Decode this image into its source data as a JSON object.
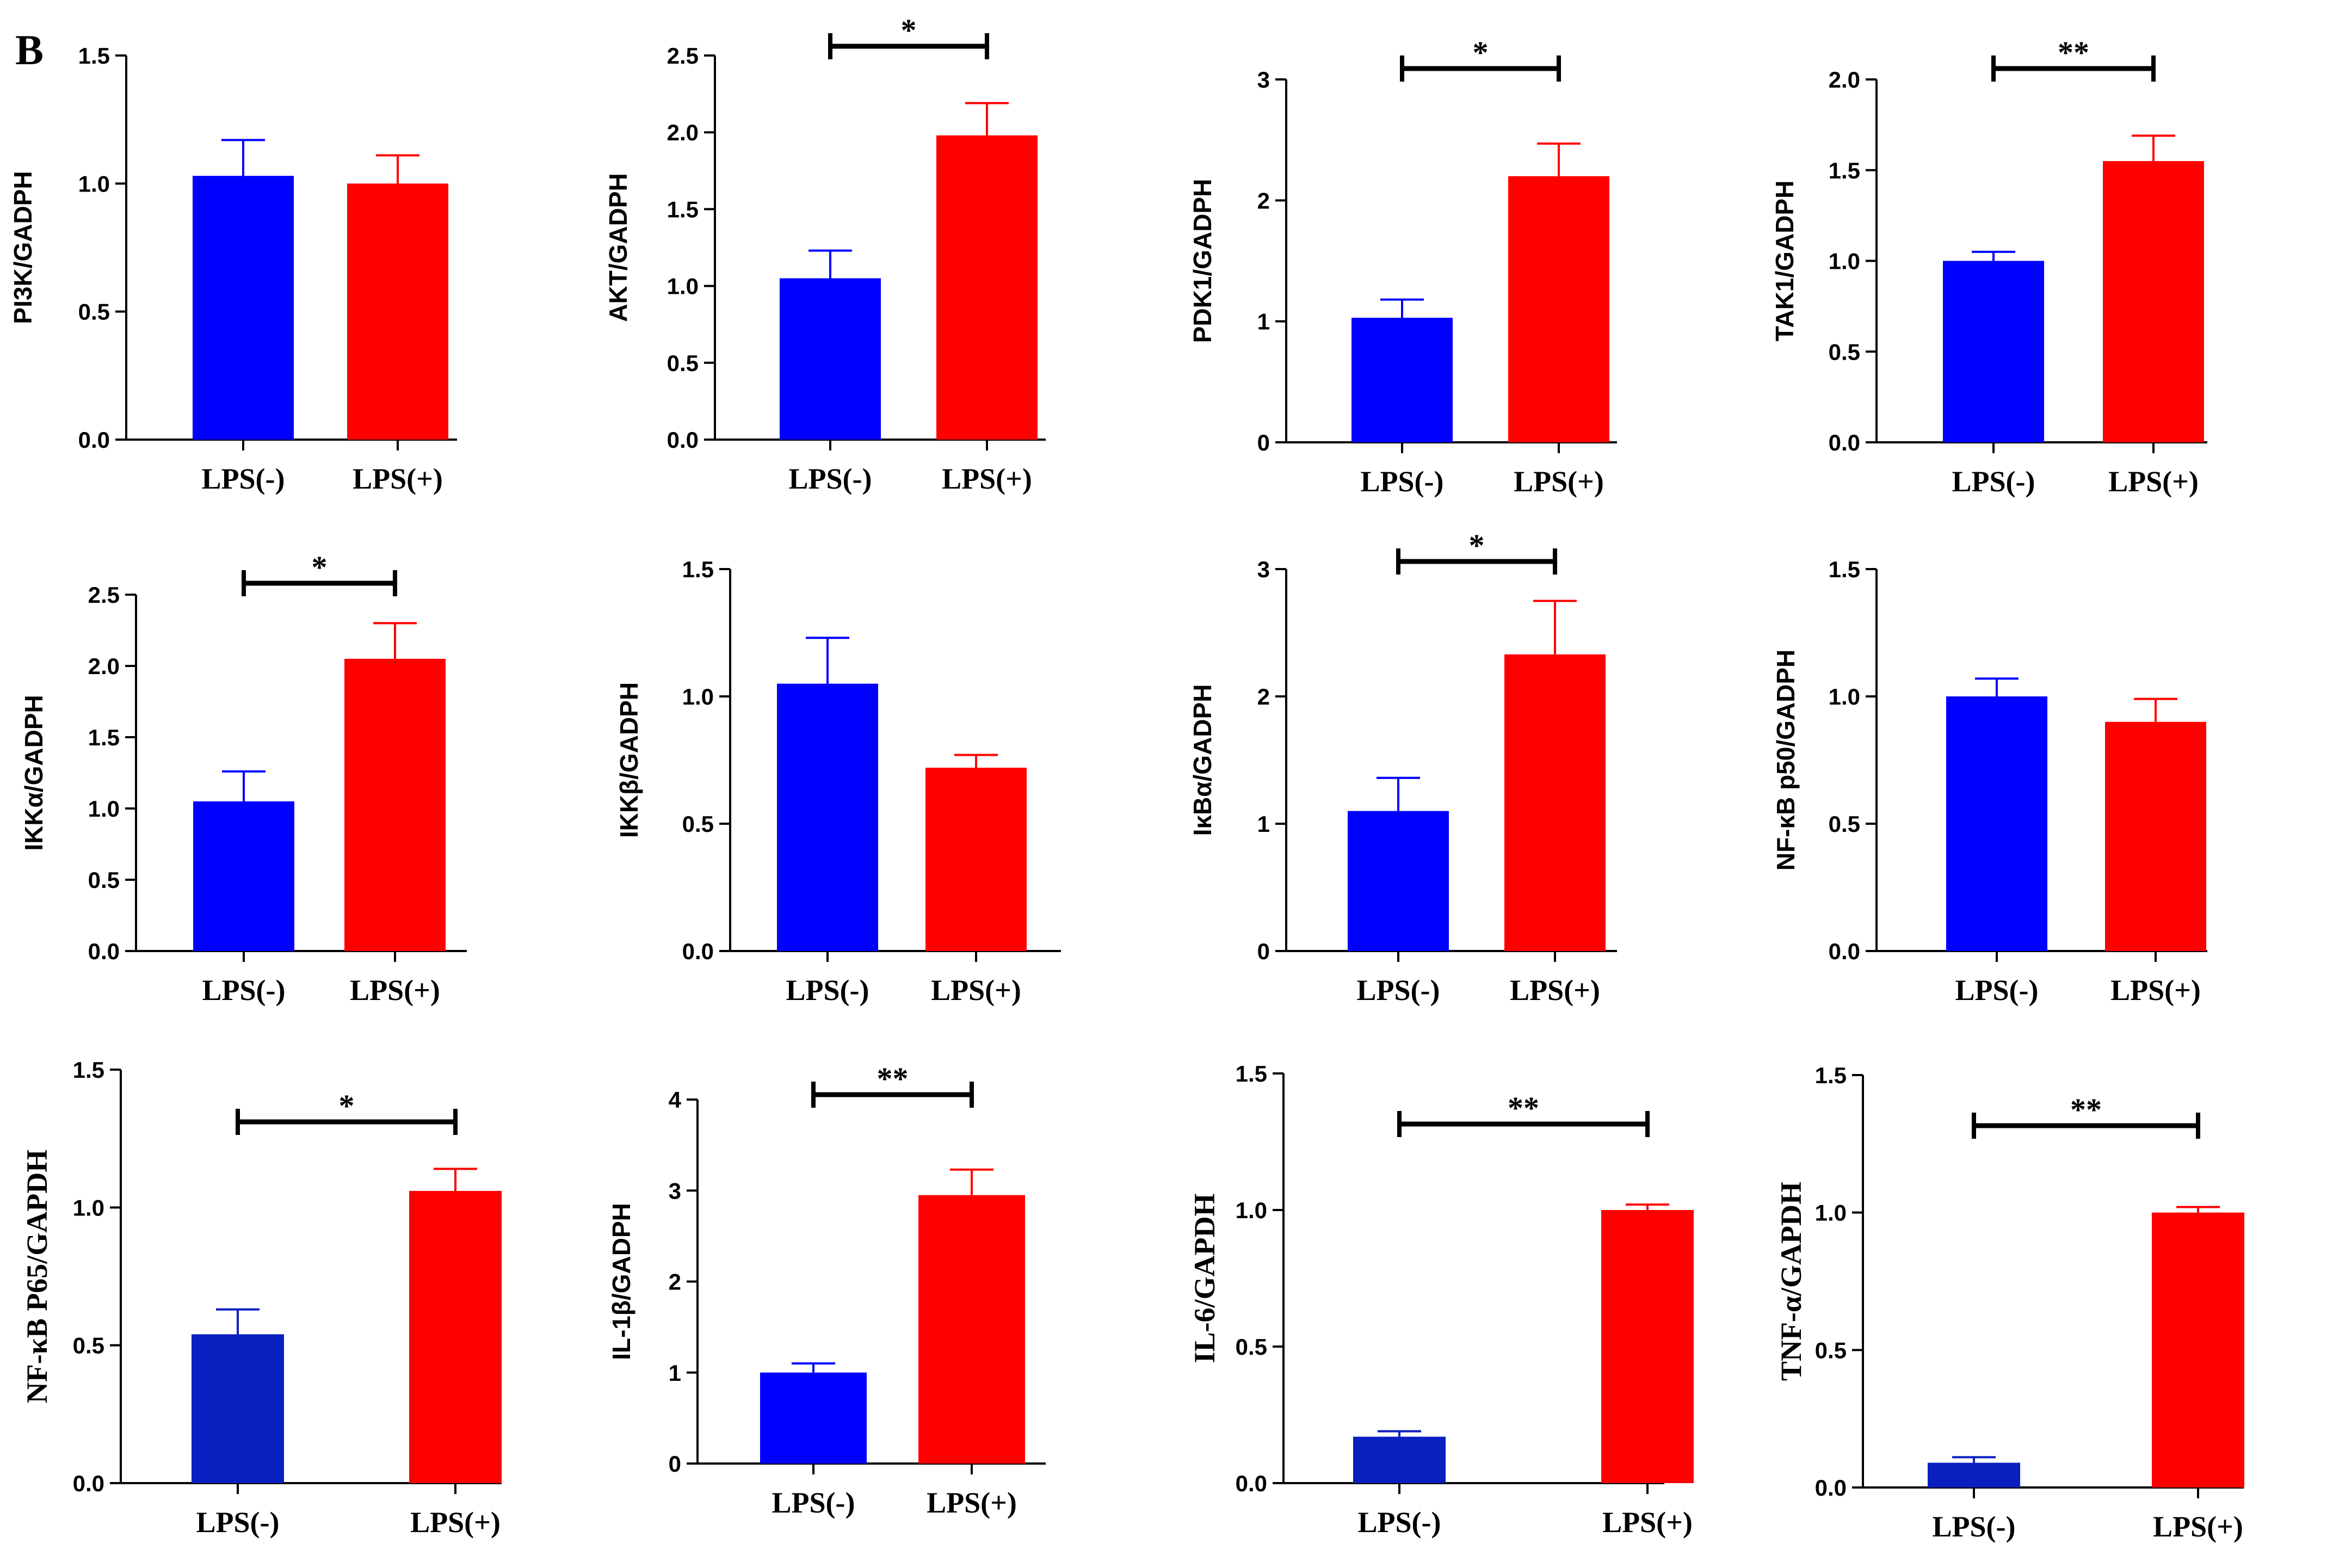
{
  "figure": {
    "panel_label": "B",
    "colors": {
      "control": "#0000FF",
      "treated": "#FF0000",
      "control_dark": "#0A1FC0",
      "axis": "#000000"
    }
  },
  "chart_data": [
    {
      "type": "bar",
      "title": "",
      "xlabel": "",
      "ylabel": "PI3K/GADPH",
      "categories": [
        "LPS(-)",
        "LPS(+)"
      ],
      "values": [
        1.03,
        1.0
      ],
      "errors": [
        0.14,
        0.11
      ],
      "ylim": [
        0,
        1.5
      ],
      "yticks": [
        "0.0",
        "0.5",
        "1.0",
        "1.5"
      ],
      "significance": ""
    },
    {
      "type": "bar",
      "title": "",
      "xlabel": "",
      "ylabel": "AKT/GADPH",
      "categories": [
        "LPS(-)",
        "LPS(+)"
      ],
      "values": [
        1.05,
        1.98
      ],
      "errors": [
        0.18,
        0.21
      ],
      "ylim": [
        0,
        2.5
      ],
      "yticks": [
        "0.0",
        "0.5",
        "1.0",
        "1.5",
        "2.0",
        "2.5"
      ],
      "significance": "*"
    },
    {
      "type": "bar",
      "title": "",
      "xlabel": "",
      "ylabel": "PDK1/GADPH",
      "categories": [
        "LPS(-)",
        "LPS(+)"
      ],
      "values": [
        1.03,
        2.2
      ],
      "errors": [
        0.15,
        0.27
      ],
      "ylim": [
        0,
        3
      ],
      "yticks": [
        "0",
        "1",
        "2",
        "3"
      ],
      "significance": "*"
    },
    {
      "type": "bar",
      "title": "",
      "xlabel": "",
      "ylabel": "TAK1/GADPH",
      "categories": [
        "LPS(-)",
        "LPS(+)"
      ],
      "values": [
        1.0,
        1.55
      ],
      "errors": [
        0.05,
        0.14
      ],
      "ylim": [
        0,
        2.0
      ],
      "yticks": [
        "0.0",
        "0.5",
        "1.0",
        "1.5",
        "2.0"
      ],
      "significance": "**"
    },
    {
      "type": "bar",
      "title": "",
      "xlabel": "",
      "ylabel": "IKKα/GADPH",
      "categories": [
        "LPS(-)",
        "LPS(+)"
      ],
      "values": [
        1.05,
        2.05
      ],
      "errors": [
        0.21,
        0.25
      ],
      "ylim": [
        0,
        2.5
      ],
      "yticks": [
        "0.0",
        "0.5",
        "1.0",
        "1.5",
        "2.0",
        "2.5"
      ],
      "significance": "*"
    },
    {
      "type": "bar",
      "title": "",
      "xlabel": "",
      "ylabel": "IKKβ/GADPH",
      "categories": [
        "LPS(-)",
        "LPS(+)"
      ],
      "values": [
        1.05,
        0.72
      ],
      "errors": [
        0.18,
        0.05
      ],
      "ylim": [
        0,
        1.5
      ],
      "yticks": [
        "0.0",
        "0.5",
        "1.0",
        "1.5"
      ],
      "significance": ""
    },
    {
      "type": "bar",
      "title": "",
      "xlabel": "",
      "ylabel": "IκBα/GADPH",
      "categories": [
        "LPS(-)",
        "LPS(+)"
      ],
      "values": [
        1.1,
        2.33
      ],
      "errors": [
        0.26,
        0.42
      ],
      "ylim": [
        0,
        3
      ],
      "yticks": [
        "0",
        "1",
        "2",
        "3"
      ],
      "significance": "*"
    },
    {
      "type": "bar",
      "title": "",
      "xlabel": "",
      "ylabel": "NF-κB p50/GADPH",
      "categories": [
        "LPS(-)",
        "LPS(+)"
      ],
      "values": [
        1.0,
        0.9
      ],
      "errors": [
        0.07,
        0.09
      ],
      "ylim": [
        0,
        1.5
      ],
      "yticks": [
        "0.0",
        "0.5",
        "1.0",
        "1.5"
      ],
      "significance": ""
    },
    {
      "type": "bar",
      "title": "",
      "xlabel": "",
      "ylabel": "NF-κB P65/GAPDH",
      "categories": [
        "LPS(-)",
        "LPS(+)"
      ],
      "values": [
        0.54,
        1.06
      ],
      "errors": [
        0.09,
        0.08
      ],
      "ylim": [
        0,
        1.5
      ],
      "yticks": [
        "0.0",
        "0.5",
        "1.0",
        "1.5"
      ],
      "significance": "*"
    },
    {
      "type": "bar",
      "title": "",
      "xlabel": "",
      "ylabel": "IL-1β/GADPH",
      "categories": [
        "LPS(-)",
        "LPS(+)"
      ],
      "values": [
        1.0,
        2.95
      ],
      "errors": [
        0.1,
        0.28
      ],
      "ylim": [
        0,
        4
      ],
      "yticks": [
        "0",
        "1",
        "2",
        "3",
        "4"
      ],
      "significance": "**"
    },
    {
      "type": "bar",
      "title": "",
      "xlabel": "",
      "ylabel": "IL-6/GAPDH",
      "categories": [
        "LPS(-)",
        "LPS(+)"
      ],
      "values": [
        0.17,
        1.0
      ],
      "errors": [
        0.02,
        0.02
      ],
      "ylim": [
        0,
        1.5
      ],
      "yticks": [
        "0.0",
        "0.5",
        "1.0",
        "1.5"
      ],
      "significance": "**"
    },
    {
      "type": "bar",
      "title": "",
      "xlabel": "",
      "ylabel": "TNF-α/GAPDH",
      "categories": [
        "LPS(-)",
        "LPS(+)"
      ],
      "values": [
        0.09,
        1.0
      ],
      "errors": [
        0.02,
        0.02
      ],
      "ylim": [
        0,
        1.5
      ],
      "yticks": [
        "0.0",
        "0.5",
        "1.0",
        "1.5"
      ],
      "significance": "**"
    }
  ]
}
